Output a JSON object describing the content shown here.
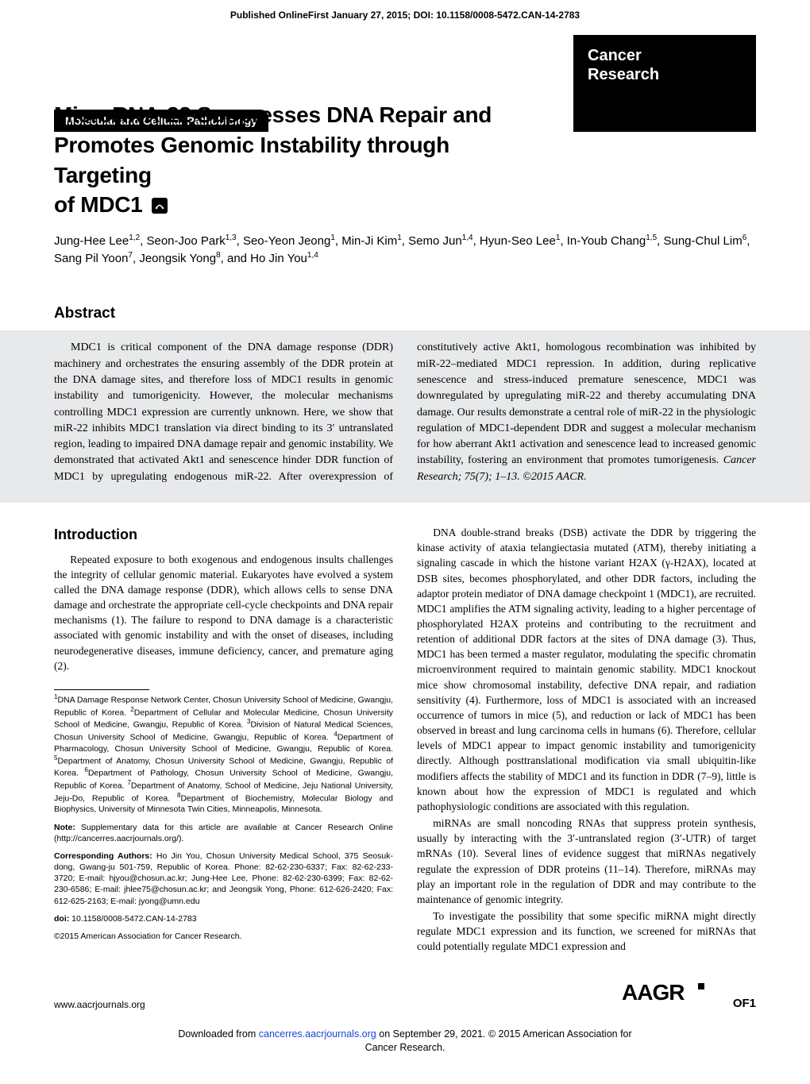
{
  "meta": {
    "published_line": "Published OnlineFirst January 27, 2015; DOI: 10.1158/0008-5472.CAN-14-2783",
    "section_label": "Molecular and Cellular Pathobiology",
    "journal_line1": "Cancer",
    "journal_line2": "Research"
  },
  "title": {
    "line1": "MicroRNA-22 Suppresses DNA Repair and",
    "line2": "Promotes Genomic Instability through Targeting",
    "line3": "of MDC1"
  },
  "authors_html": "Jung-Hee Lee<sup>1,2</sup>, Seon-Joo Park<sup>1,3</sup>, Seo-Yeon Jeong<sup>1</sup>, Min-Ji Kim<sup>1</sup>, Semo Jun<sup>1,4</sup>, Hyun-Seo Lee<sup>1</sup>, In-Youb Chang<sup>1,5</sup>, Sung-Chul Lim<sup>6</sup>, Sang Pil Yoon<sup>7</sup>, Jeongsik Yong<sup>8</sup>, and Ho Jin You<sup>1,4</sup>",
  "abstract": {
    "heading": "Abstract",
    "body": "MDC1 is critical component of the DNA damage response (DDR) machinery and orchestrates the ensuring assembly of the DDR protein at the DNA damage sites, and therefore loss of MDC1 results in genomic instability and tumorigenicity. However, the molecular mechanisms controlling MDC1 expression are currently unknown. Here, we show that miR-22 inhibits MDC1 translation via direct binding to its 3′ untranslated region, leading to impaired DNA damage repair and genomic instability. We demonstrated that activated Akt1 and senescence hinder DDR function of MDC1 by upregulating endogenous miR-22. After overexpression of constitutively active Akt1, homologous recombination was inhibited by miR-22–mediated MDC1 repression. In addition, during replicative senescence and stress-induced premature senescence, MDC1 was downregulated by upregulating miR-22 and thereby accumulating DNA damage. Our results demonstrate a central role of miR-22 in the physiologic regulation of MDC1-dependent DDR and suggest a molecular mechanism for how aberrant Akt1 activation and senescence lead to increased genomic instability, fostering an environment that promotes tumorigenesis.",
    "citation": "Cancer Research; 75(7); 1–13. ©2015 AACR."
  },
  "intro": {
    "heading": "Introduction",
    "p1": "Repeated exposure to both exogenous and endogenous insults challenges the integrity of cellular genomic material. Eukaryotes have evolved a system called the DNA damage response (DDR), which allows cells to sense DNA damage and orchestrate the appropriate cell-cycle checkpoints and DNA repair mechanisms (1). The failure to respond to DNA damage is a characteristic associated with genomic instability and with the onset of diseases, including neurodegenerative diseases, immune deficiency, cancer, and premature aging (2).",
    "p2": "DNA double-strand breaks (DSB) activate the DDR by triggering the kinase activity of ataxia telangiectasia mutated (ATM), thereby initiating a signaling cascade in which the histone variant H2AX (γ-H2AX), located at DSB sites, becomes phosphorylated, and other DDR factors, including the adaptor protein mediator of DNA damage checkpoint 1 (MDC1), are recruited. MDC1 amplifies the ATM signaling activity, leading to a higher percentage of phosphorylated H2AX proteins and contributing to the recruitment and retention of additional DDR factors at the sites of DNA damage (3). Thus, MDC1 has been termed a master regulator, modulating the specific chromatin microenvironment required to maintain genomic stability. MDC1 knockout mice show chromosomal instability, defective DNA repair, and radiation sensitivity (4). Furthermore, loss of MDC1 is associated with an increased occurrence of tumors in mice (5), and reduction or lack of MDC1 has been observed in breast and lung carcinoma cells in humans (6). Therefore, cellular levels of MDC1 appear to impact genomic instability and tumorigenicity directly. Although posttranslational modification via small ubiquitin-like modifiers affects the stability of MDC1 and its function in DDR (7–9), little is known about how the expression of MDC1 is regulated and which pathophysiologic conditions are associated with this regulation.",
    "p3": "miRNAs are small noncoding RNAs that suppress protein synthesis, usually by interacting with the 3′-untranslated region (3′-UTR) of target mRNAs (10). Several lines of evidence suggest that miRNAs negatively regulate the expression of DDR proteins (11–14). Therefore, miRNAs may play an important role in the regulation of DDR and may contribute to the maintenance of genomic integrity.",
    "p4": "To investigate the possibility that some specific miRNA might directly regulate MDC1 expression and its function, we screened for miRNAs that could potentially regulate MDC1 expression and"
  },
  "affiliations_html": "<sup>1</sup>DNA Damage Response Network Center, Chosun University School of Medicine, Gwangju, Republic of Korea. <sup>2</sup>Department of Cellular and Molecular Medicine, Chosun University School of Medicine, Gwangju, Republic of Korea. <sup>3</sup>Division of Natural Medical Sciences, Chosun University School of Medicine, Gwangju, Republic of Korea. <sup>4</sup>Department of Pharmacology, Chosun University School of Medicine, Gwangju, Republic of Korea. <sup>5</sup>Department of Anatomy, Chosun University School of Medicine, Gwangju, Republic of Korea. <sup>6</sup>Department of Pathology, Chosun University School of Medicine, Gwangju, Republic of Korea. <sup>7</sup>Department of Anatomy, School of Medicine, Jeju National University, Jeju-Do, Republic of Korea. <sup>8</sup>Department of Biochemistry, Molecular Biology and Biophysics, University of Minnesota Twin Cities, Minneapolis, Minnesota.",
  "note": {
    "label": "Note:",
    "text": " Supplementary data for this article are available at Cancer Research Online (http://cancerres.aacrjournals.org/)."
  },
  "corresponding": {
    "label": "Corresponding Authors:",
    "text": " Ho Jin You, Chosun University Medical School, 375 Seosuk-dong, Gwang-ju 501-759, Republic of Korea. Phone: 82-62-230-6337; Fax: 82-62-233-3720; E-mail: hjyou@chosun.ac.kr; Jung-Hee Lee, Phone: 82-62-230-6399; Fax: 82-62-230-6586; E-mail: jhlee75@chosun.ac.kr; and Jeongsik Yong, Phone: 612-626-2420; Fax: 612-625-2163; E-mail: jyong@umn.edu"
  },
  "doi": {
    "label": "doi:",
    "text": " 10.1158/0008-5472.CAN-14-2783"
  },
  "copyright": "©2015 American Association for Cancer Research.",
  "footer": {
    "url": "www.aacrjournals.org",
    "logo": "AACR",
    "page": "OF1"
  },
  "download_footer": {
    "prefix": "Downloaded from ",
    "link_text": "cancerres.aacrjournals.org",
    "suffix": " on September 29, 2021. © 2015 American Association for",
    "line2": "Cancer Research."
  }
}
